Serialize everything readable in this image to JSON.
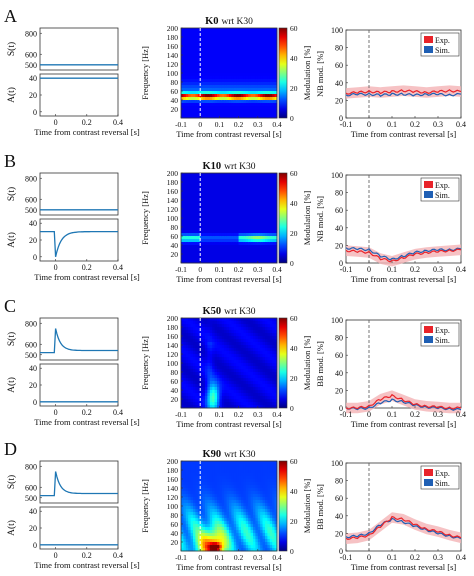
{
  "panels": [
    {
      "letter": "A",
      "title_bold": "K0",
      "title_rest": "wrt K30",
      "s_ticks": [
        "800",
        "600",
        "500"
      ],
      "a_ticks": [
        "40",
        "20",
        "0"
      ],
      "right_ylabel": "NB mod. [%]"
    },
    {
      "letter": "B",
      "title_bold": "K10",
      "title_rest": "wrt K30",
      "s_ticks": [
        "800",
        "600",
        "500"
      ],
      "a_ticks": [
        "40",
        "20",
        "0"
      ],
      "right_ylabel": "NB mod. [%]"
    },
    {
      "letter": "C",
      "title_bold": "K50",
      "title_rest": "wrt K30",
      "s_ticks": [
        "800",
        "600",
        "500"
      ],
      "a_ticks": [
        "40",
        "20",
        "0"
      ],
      "right_ylabel": "BB mod. [%]"
    },
    {
      "letter": "D",
      "title_bold": "K90",
      "title_rest": "wrt K30",
      "s_ticks": [
        "800",
        "600",
        "500"
      ],
      "a_ticks": [
        "40",
        "20",
        "0"
      ],
      "right_ylabel": "BB mod. [%]"
    }
  ],
  "labels": {
    "s_label": "S(t)",
    "a_label": "A(t)",
    "freq_label": "Frequency [Hz]",
    "mod_label": "Modulation [%]",
    "time_label": "Time from contrast reversal [s]"
  },
  "ticks": {
    "left_x": [
      "0",
      "0.2",
      "0.4"
    ],
    "spec_x": [
      "-0.1",
      "0",
      "0.1",
      "0.2",
      "0.3",
      "0.4"
    ],
    "spec_y": [
      "200",
      "180",
      "160",
      "140",
      "120",
      "100",
      "80",
      "60",
      "40",
      "20"
    ],
    "right_x": [
      "-0.1",
      "0",
      "0.1",
      "0.2",
      "0.3",
      "0.4"
    ],
    "right_y": [
      "100",
      "80",
      "60",
      "40",
      "20",
      "0"
    ],
    "colorbar": [
      "60",
      "40",
      "20",
      "0"
    ]
  },
  "legend": {
    "exp": "Exp.",
    "sim": "Sim."
  },
  "colors": {
    "exp": "#e8232a",
    "sim": "#1f5fb4",
    "trace": "#1f77b4",
    "shade": "#f4b3b5"
  },
  "chart_data": [
    {
      "type": "line",
      "panel": "A",
      "xlabel": "Time from contrast reversal [s]",
      "ylabel": "NB mod. [%]",
      "xlim": [
        -0.1,
        0.4
      ],
      "ylim": [
        0,
        100
      ],
      "x": [
        -0.1,
        -0.05,
        0,
        0.05,
        0.1,
        0.15,
        0.2,
        0.25,
        0.3,
        0.35,
        0.4
      ],
      "series": [
        {
          "name": "Exp.",
          "values": [
            28,
            29,
            30,
            29,
            30,
            31,
            30,
            29,
            30,
            31,
            30
          ]
        },
        {
          "name": "Sim.",
          "values": [
            26,
            27,
            27,
            26,
            27,
            27,
            26,
            27,
            27,
            26,
            27
          ]
        }
      ],
      "spectrogram": {
        "band_hz": [
          40,
          55
        ],
        "peak_hz": 48,
        "max_modulation": 60,
        "ylim": [
          0,
          200
        ],
        "clim": [
          0,
          60
        ]
      }
    },
    {
      "type": "line",
      "panel": "B",
      "xlabel": "Time from contrast reversal [s]",
      "ylabel": "NB mod. [%]",
      "xlim": [
        -0.1,
        0.4
      ],
      "ylim": [
        0,
        100
      ],
      "x": [
        -0.1,
        -0.05,
        0,
        0.05,
        0.1,
        0.15,
        0.2,
        0.25,
        0.3,
        0.35,
        0.4
      ],
      "series": [
        {
          "name": "Exp.",
          "values": [
            14,
            13,
            12,
            5,
            2,
            6,
            10,
            12,
            13,
            14,
            15
          ]
        },
        {
          "name": "Sim.",
          "values": [
            17,
            16,
            15,
            8,
            4,
            8,
            12,
            14,
            15,
            15,
            16
          ]
        }
      ],
      "spectrogram": {
        "band_hz": [
          45,
          60
        ],
        "max_modulation": 25,
        "ylim": [
          0,
          200
        ],
        "clim": [
          0,
          60
        ]
      }
    },
    {
      "type": "line",
      "panel": "C",
      "xlabel": "Time from contrast reversal [s]",
      "ylabel": "BB mod. [%]",
      "xlim": [
        -0.1,
        0.4
      ],
      "ylim": [
        0,
        100
      ],
      "x": [
        -0.1,
        -0.05,
        0,
        0.05,
        0.1,
        0.15,
        0.2,
        0.25,
        0.3,
        0.35,
        0.4
      ],
      "series": [
        {
          "name": "Exp.",
          "values": [
            0,
            0,
            2,
            10,
            14,
            9,
            4,
            2,
            1,
            0,
            0
          ]
        },
        {
          "name": "Sim.",
          "values": [
            0,
            -1,
            0,
            6,
            9,
            7,
            3,
            1,
            0,
            -1,
            -2
          ]
        }
      ],
      "spectrogram": {
        "burst_time_s": [
          0.05,
          0.1
        ],
        "burst_hz": [
          10,
          60
        ],
        "max_modulation": 20,
        "ylim": [
          0,
          200
        ],
        "clim": [
          0,
          60
        ]
      }
    },
    {
      "type": "line",
      "panel": "D",
      "xlabel": "Time from contrast reversal [s]",
      "ylabel": "BB mod. [%]",
      "xlim": [
        -0.1,
        0.4
      ],
      "ylim": [
        0,
        100
      ],
      "x": [
        -0.1,
        -0.05,
        0,
        0.05,
        0.1,
        0.15,
        0.2,
        0.25,
        0.3,
        0.35,
        0.4
      ],
      "series": [
        {
          "name": "Exp.",
          "values": [
            14,
            15,
            18,
            28,
            38,
            36,
            30,
            25,
            22,
            18,
            15
          ]
        },
        {
          "name": "Sim.",
          "values": [
            16,
            17,
            20,
            30,
            36,
            33,
            28,
            24,
            20,
            17,
            14
          ]
        }
      ],
      "spectrogram": {
        "burst_time_s": [
          0.0,
          0.15
        ],
        "burst_hz": [
          0,
          100
        ],
        "max_modulation": 60,
        "ylim": [
          0,
          200
        ],
        "clim": [
          0,
          60
        ]
      }
    }
  ],
  "stimulus_data": [
    {
      "panel": "A",
      "S": "constant",
      "A": "constant",
      "a_level": 40
    },
    {
      "panel": "B",
      "S": "constant",
      "A": "transient dip",
      "a_level": 30,
      "a_min": 0
    },
    {
      "panel": "C",
      "S": "transient peak",
      "s_peak": 750,
      "s_base": 540,
      "A": "constant",
      "a_level": 0
    },
    {
      "panel": "D",
      "S": "transient peak",
      "s_peak": 750,
      "s_base": 540,
      "A": "constant",
      "a_level": 0
    }
  ]
}
